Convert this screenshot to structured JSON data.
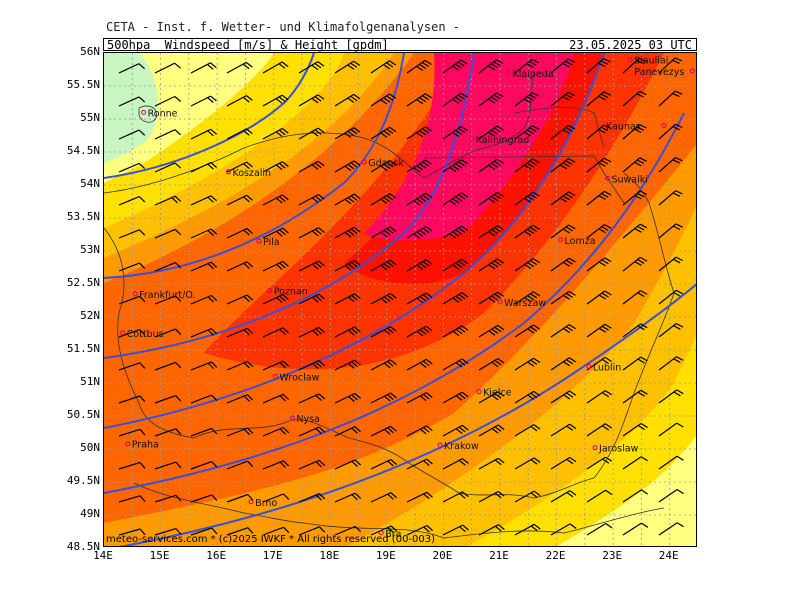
{
  "header": {
    "title": "CETA - Inst. f. Wetter- und Klimafolgenanalysen -",
    "product": "500hpa  Windspeed [m/s] & Height [gpdm]",
    "valid_time": "23.05.2025 03 UTC"
  },
  "footer": {
    "credit": "meteo-services.com * (c)2025 IWKF * All rights reserved (00-003)"
  },
  "axes": {
    "lon_labels": [
      "14E",
      "15E",
      "16E",
      "17E",
      "18E",
      "19E",
      "20E",
      "21E",
      "22E",
      "23E",
      "24E"
    ],
    "lat_labels": [
      "56N",
      "55.5N",
      "55N",
      "54.5N",
      "54N",
      "53.5N",
      "53N",
      "52.5N",
      "52N",
      "51.5N",
      "51N",
      "50.5N",
      "50N",
      "49.5N",
      "49N",
      "48.5N"
    ]
  },
  "colors": {
    "c_lightgreen": "#c8f5c0",
    "c_paleyellow": "#ffff80",
    "c_yellow": "#ffe000",
    "c_orange1": "#ffc000",
    "c_orange2": "#ff9a00",
    "c_orange3": "#ff6600",
    "c_red1": "#ff3300",
    "c_red2": "#ff1000",
    "c_magenta": "#ff0860",
    "contour": "#3a4fd8",
    "border": "#333333"
  },
  "cities": [
    {
      "name": "Ronne"
    },
    {
      "name": "Koszalin"
    },
    {
      "name": "Gdansk"
    },
    {
      "name": "Kaliningrad"
    },
    {
      "name": "Klaipeda"
    },
    {
      "name": "Siauliai"
    },
    {
      "name": "Panevezys"
    },
    {
      "name": "Kaunas"
    },
    {
      "name": "Suwalki"
    },
    {
      "name": "Pila"
    },
    {
      "name": "Lomza"
    },
    {
      "name": "Frankfurt/O."
    },
    {
      "name": "Poznan"
    },
    {
      "name": "Warszaw"
    },
    {
      "name": "Cottbus"
    },
    {
      "name": "Lublin"
    },
    {
      "name": "Wroclaw"
    },
    {
      "name": "Kielce"
    },
    {
      "name": "Nysa"
    },
    {
      "name": "Praha"
    },
    {
      "name": "Krakow"
    },
    {
      "name": "Jaroslaw"
    },
    {
      "name": "Brno"
    },
    {
      "name": "Bra"
    }
  ]
}
